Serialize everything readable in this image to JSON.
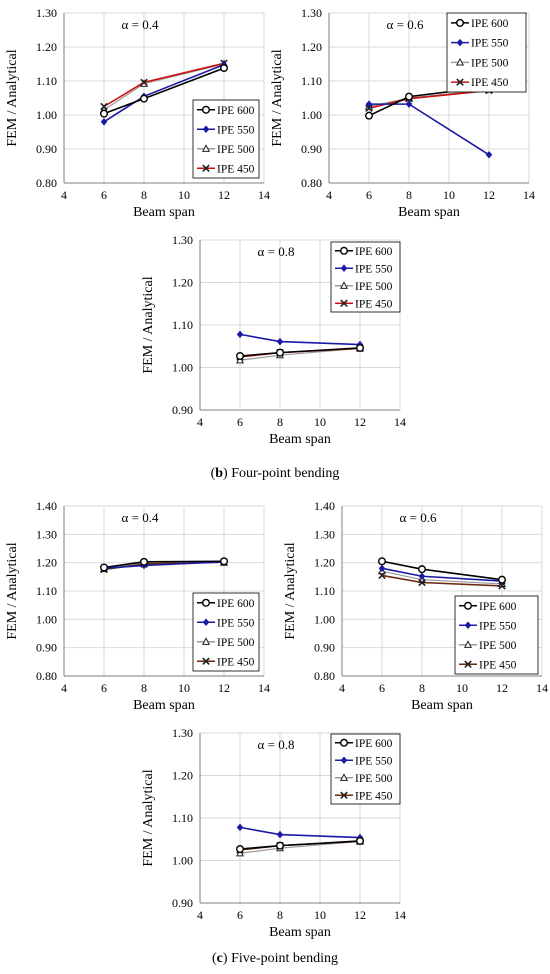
{
  "captions": [
    {
      "letter": "b",
      "text": " Four-point bending"
    },
    {
      "letter": "c",
      "text": " Five-point bending"
    }
  ],
  "colors": {
    "IPE 600": "#000000",
    "IPE 550": "#1a1aa6",
    "IPE 500": "#9a9a9a",
    "IPE 450": "#cc1111",
    "IPE 450 five": "#6b2a0e"
  },
  "chart_data": [
    {
      "type": "line",
      "title": "α = 0.4",
      "xlabel": "Beam span",
      "ylabel": "FEM / Analytical",
      "xlim": [
        4,
        14
      ],
      "ylim": [
        0.8,
        1.3
      ],
      "xticks": [
        4,
        6,
        8,
        10,
        12,
        14
      ],
      "yticks": [
        0.8,
        0.9,
        1.0,
        1.1,
        1.2,
        1.3
      ],
      "grid": true,
      "legend": "bottom-right",
      "series": [
        {
          "name": "IPE 600",
          "x": [
            6,
            8,
            12
          ],
          "y": [
            1.004,
            1.048,
            1.138
          ],
          "marker": "circle",
          "color": "#000000"
        },
        {
          "name": "IPE 550",
          "x": [
            6,
            8,
            12
          ],
          "y": [
            0.98,
            1.055,
            1.148
          ],
          "marker": "diamond",
          "color": "#1a1aa6"
        },
        {
          "name": "IPE 500",
          "x": [
            6,
            8,
            12
          ],
          "y": [
            1.015,
            1.092,
            1.15
          ],
          "marker": "triangle",
          "color": "#9a9a9a"
        },
        {
          "name": "IPE 450",
          "x": [
            6,
            8,
            12
          ],
          "y": [
            1.025,
            1.096,
            1.152
          ],
          "marker": "x",
          "color": "#cc1111"
        }
      ]
    },
    {
      "type": "line",
      "title": "α = 0.6",
      "xlabel": "Beam span",
      "ylabel": "FEM / Analytical",
      "xlim": [
        4,
        14
      ],
      "ylim": [
        0.8,
        1.3
      ],
      "xticks": [
        4,
        6,
        8,
        10,
        12,
        14
      ],
      "yticks": [
        0.8,
        0.9,
        1.0,
        1.1,
        1.2,
        1.3
      ],
      "grid": true,
      "legend": "top-right",
      "series": [
        {
          "name": "IPE 600",
          "x": [
            6,
            8,
            12
          ],
          "y": [
            0.998,
            1.054,
            1.083
          ],
          "marker": "circle",
          "color": "#000000"
        },
        {
          "name": "IPE 550",
          "x": [
            6,
            8,
            12
          ],
          "y": [
            1.032,
            1.032,
            0.883
          ],
          "marker": "diamond",
          "color": "#1a1aa6"
        },
        {
          "name": "IPE 500",
          "x": [
            6,
            8,
            12
          ],
          "y": [
            1.025,
            1.05,
            1.075
          ],
          "marker": "triangle",
          "color": "#9a9a9a"
        },
        {
          "name": "IPE 450",
          "x": [
            6,
            8,
            12
          ],
          "y": [
            1.02,
            1.048,
            1.072
          ],
          "marker": "x",
          "color": "#cc1111"
        }
      ]
    },
    {
      "type": "line",
      "title": "α = 0.8",
      "xlabel": "Beam span",
      "ylabel": "FEM / Analytical",
      "xlim": [
        4,
        14
      ],
      "ylim": [
        0.9,
        1.3
      ],
      "xticks": [
        4,
        6,
        8,
        10,
        12,
        14
      ],
      "yticks": [
        0.9,
        1.0,
        1.1,
        1.2,
        1.3
      ],
      "grid": true,
      "legend": "top-right",
      "series": [
        {
          "name": "IPE 600",
          "x": [
            6,
            8,
            12
          ],
          "y": [
            1.027,
            1.035,
            1.046
          ],
          "marker": "circle",
          "color": "#000000"
        },
        {
          "name": "IPE 550",
          "x": [
            6,
            8,
            12
          ],
          "y": [
            1.078,
            1.061,
            1.054
          ],
          "marker": "diamond",
          "color": "#1a1aa6"
        },
        {
          "name": "IPE 500",
          "x": [
            6,
            8,
            12
          ],
          "y": [
            1.017,
            1.029,
            1.045
          ],
          "marker": "triangle",
          "color": "#9a9a9a"
        },
        {
          "name": "IPE 450",
          "x": [
            6,
            8,
            12
          ],
          "y": [
            1.025,
            1.035,
            1.045
          ],
          "marker": "x",
          "color": "#cc1111"
        }
      ]
    },
    {
      "type": "line",
      "title": "α = 0.4",
      "xlabel": "Beam span",
      "ylabel": "FEM / Analytical",
      "xlim": [
        4,
        14
      ],
      "ylim": [
        0.8,
        1.4
      ],
      "xticks": [
        4,
        6,
        8,
        10,
        12,
        14
      ],
      "yticks": [
        0.8,
        0.9,
        1.0,
        1.1,
        1.2,
        1.3,
        1.4
      ],
      "grid": true,
      "legend": "bottom-right",
      "series": [
        {
          "name": "IPE 600",
          "x": [
            6,
            8,
            12
          ],
          "y": [
            1.183,
            1.203,
            1.205
          ],
          "marker": "circle",
          "color": "#000000"
        },
        {
          "name": "IPE 550",
          "x": [
            6,
            8,
            12
          ],
          "y": [
            1.18,
            1.19,
            1.203
          ],
          "marker": "diamond",
          "color": "#1a1aa6"
        },
        {
          "name": "IPE 500",
          "x": [
            6,
            8,
            12
          ],
          "y": [
            1.178,
            1.198,
            1.2
          ],
          "marker": "triangle",
          "color": "#9a9a9a"
        },
        {
          "name": "IPE 450",
          "x": [
            6,
            8,
            12
          ],
          "y": [
            1.176,
            1.195,
            1.202
          ],
          "marker": "x",
          "color": "#6b2a0e"
        }
      ]
    },
    {
      "type": "line",
      "title": "α = 0.6",
      "xlabel": "Beam span",
      "ylabel": "FEM / Analytical",
      "xlim": [
        4,
        14
      ],
      "ylim": [
        0.8,
        1.4
      ],
      "xticks": [
        4,
        6,
        8,
        10,
        12,
        14
      ],
      "yticks": [
        0.8,
        0.9,
        1.0,
        1.1,
        1.2,
        1.3,
        1.4
      ],
      "grid": true,
      "legend": "bottom-right",
      "series": [
        {
          "name": "IPE 600",
          "x": [
            6,
            8,
            12
          ],
          "y": [
            1.205,
            1.177,
            1.14
          ],
          "marker": "circle",
          "color": "#000000"
        },
        {
          "name": "IPE 550",
          "x": [
            6,
            8,
            12
          ],
          "y": [
            1.18,
            1.152,
            1.135
          ],
          "marker": "diamond",
          "color": "#1a1aa6"
        },
        {
          "name": "IPE 500",
          "x": [
            6,
            8,
            12
          ],
          "y": [
            1.17,
            1.14,
            1.125
          ],
          "marker": "triangle",
          "color": "#9a9a9a"
        },
        {
          "name": "IPE 450",
          "x": [
            6,
            8,
            12
          ],
          "y": [
            1.155,
            1.13,
            1.118
          ],
          "marker": "x",
          "color": "#6b2a0e"
        }
      ]
    },
    {
      "type": "line",
      "title": "α = 0.8",
      "xlabel": "Beam span",
      "ylabel": "FEM / Analytical",
      "xlim": [
        4,
        14
      ],
      "ylim": [
        0.9,
        1.3
      ],
      "xticks": [
        4,
        6,
        8,
        10,
        12,
        14
      ],
      "yticks": [
        0.9,
        1.0,
        1.1,
        1.2,
        1.3
      ],
      "grid": true,
      "legend": "top-right",
      "series": [
        {
          "name": "IPE 600",
          "x": [
            6,
            8,
            12
          ],
          "y": [
            1.027,
            1.035,
            1.046
          ],
          "marker": "circle",
          "color": "#000000"
        },
        {
          "name": "IPE 550",
          "x": [
            6,
            8,
            12
          ],
          "y": [
            1.078,
            1.061,
            1.054
          ],
          "marker": "diamond",
          "color": "#1a1aa6"
        },
        {
          "name": "IPE 500",
          "x": [
            6,
            8,
            12
          ],
          "y": [
            1.017,
            1.029,
            1.045
          ],
          "marker": "triangle",
          "color": "#9a9a9a"
        },
        {
          "name": "IPE 450",
          "x": [
            6,
            8,
            12
          ],
          "y": [
            1.025,
            1.035,
            1.045
          ],
          "marker": "x",
          "color": "#6b2a0e"
        }
      ]
    }
  ]
}
